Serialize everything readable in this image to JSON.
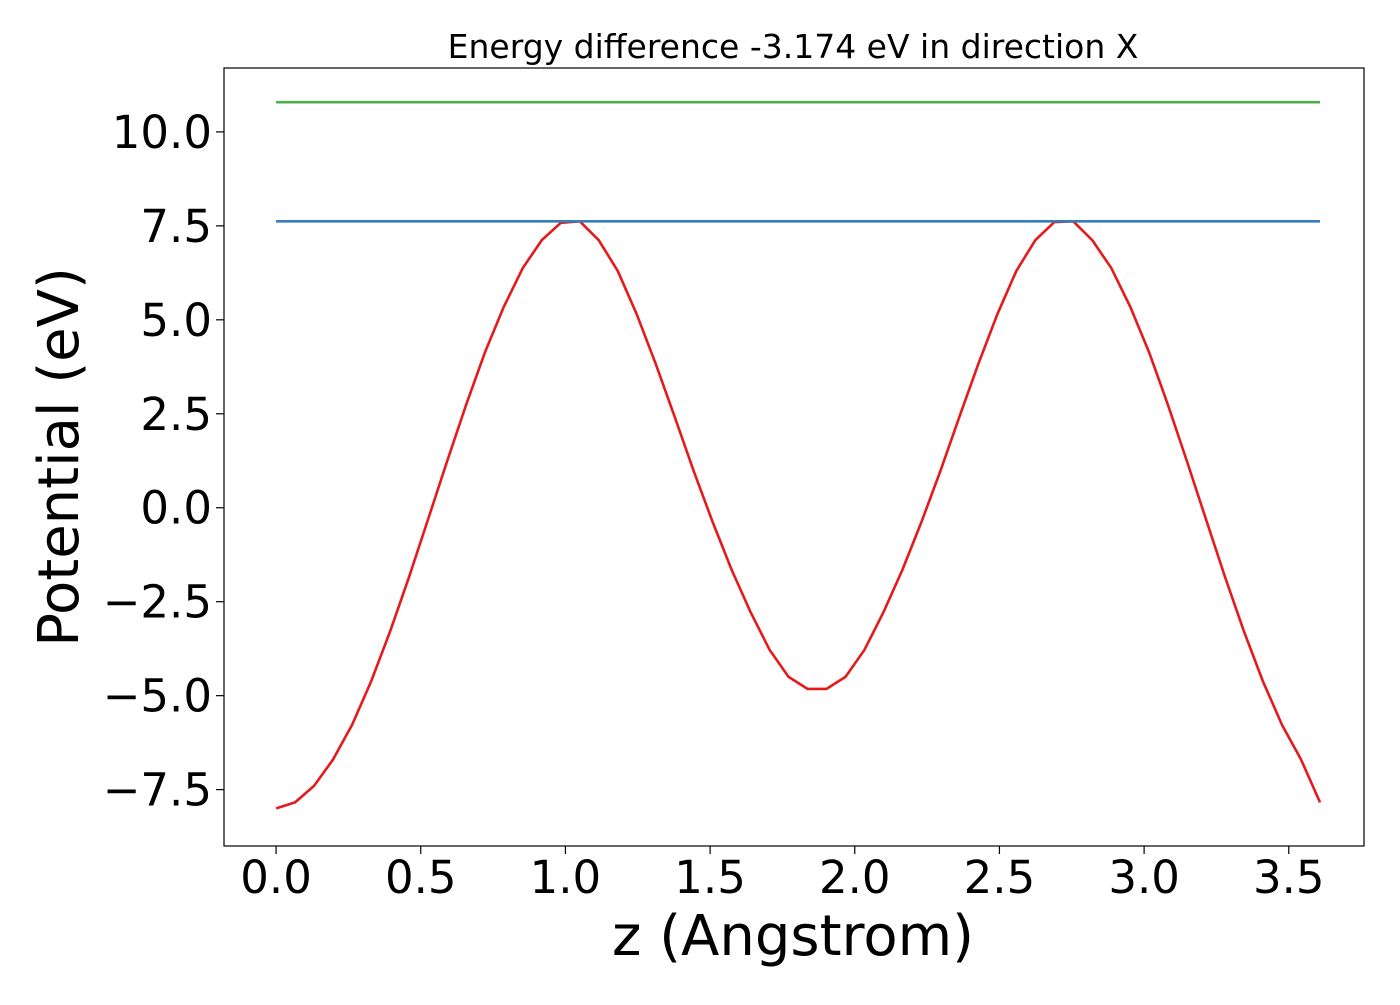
{
  "chart_data": {
    "type": "line",
    "title": "Energy difference -3.174 eV in direction X",
    "xlabel": "z (Angstrom)",
    "ylabel": "Potential (eV)",
    "xlim": [
      -0.18,
      3.76
    ],
    "ylim": [
      -9.0,
      11.7
    ],
    "grid": false,
    "xticks": [
      {
        "value": 0.0,
        "label": "0.0"
      },
      {
        "value": 0.5,
        "label": "0.5"
      },
      {
        "value": 1.0,
        "label": "1.0"
      },
      {
        "value": 1.5,
        "label": "1.5"
      },
      {
        "value": 2.0,
        "label": "2.0"
      },
      {
        "value": 2.5,
        "label": "2.5"
      },
      {
        "value": 3.0,
        "label": "3.0"
      },
      {
        "value": 3.5,
        "label": "3.5"
      }
    ],
    "yticks": [
      {
        "value": -7.5,
        "label": "−7.5"
      },
      {
        "value": -5.0,
        "label": "−5.0"
      },
      {
        "value": -2.5,
        "label": "−2.5"
      },
      {
        "value": 0.0,
        "label": "0.0"
      },
      {
        "value": 2.5,
        "label": "2.5"
      },
      {
        "value": 5.0,
        "label": "5.0"
      },
      {
        "value": 7.5,
        "label": "7.5"
      },
      {
        "value": 10.0,
        "label": "10.0"
      }
    ],
    "series": [
      {
        "color": "#e41a1c",
        "x": [
          0.0,
          0.0656,
          0.1312,
          0.1968,
          0.2624,
          0.328,
          0.3936,
          0.4592,
          0.5248,
          0.5904,
          0.656,
          0.7216,
          0.7872,
          0.8528,
          0.9184,
          0.984,
          1.0496,
          1.1152,
          1.1808,
          1.2464,
          1.312,
          1.3776,
          1.4432,
          1.5088,
          1.5744,
          1.64,
          1.7056,
          1.7712,
          1.8368,
          1.9024,
          1.968,
          2.0336,
          2.0992,
          2.1648,
          2.2304,
          2.296,
          2.3616,
          2.4272,
          2.4928,
          2.5584,
          2.624,
          2.6896,
          2.7552,
          2.8208,
          2.8864,
          2.952,
          3.0176,
          3.0832,
          3.1488,
          3.2144,
          3.28,
          3.3456,
          3.4112,
          3.4768,
          3.5424,
          3.608
        ],
        "y": [
          -8.0,
          -7.84,
          -7.4,
          -6.7,
          -5.78,
          -4.63,
          -3.3,
          -1.85,
          -0.32,
          1.22,
          2.72,
          4.13,
          5.35,
          6.38,
          7.12,
          7.58,
          7.62,
          7.12,
          6.3,
          5.15,
          3.83,
          2.42,
          0.98,
          -0.38,
          -1.65,
          -2.78,
          -3.78,
          -4.5,
          -4.82,
          -4.82,
          -4.5,
          -3.78,
          -2.78,
          -1.65,
          -0.38,
          0.98,
          2.42,
          3.83,
          5.15,
          6.3,
          7.12,
          7.6,
          7.62,
          7.12,
          6.38,
          5.35,
          4.13,
          2.72,
          1.22,
          -0.32,
          -1.85,
          -3.3,
          -4.63,
          -5.78,
          -6.7,
          -7.84
        ]
      },
      {
        "color": "#377eb8",
        "x": [
          0.0,
          3.608
        ],
        "y": [
          7.62,
          7.62
        ]
      },
      {
        "color": "#4daf4a",
        "x": [
          0.0,
          3.608
        ],
        "y": [
          10.79,
          10.79
        ]
      }
    ]
  }
}
